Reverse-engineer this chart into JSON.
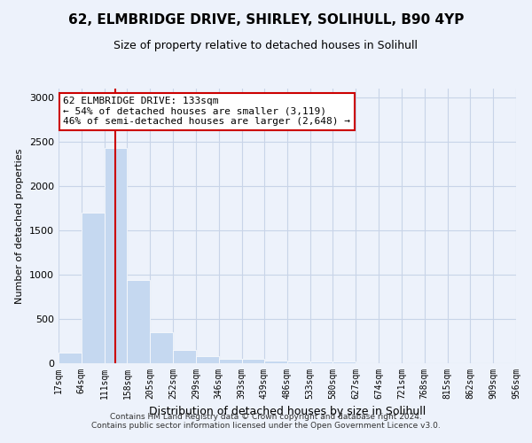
{
  "title1": "62, ELMBRIDGE DRIVE, SHIRLEY, SOLIHULL, B90 4YP",
  "title2": "Size of property relative to detached houses in Solihull",
  "xlabel": "Distribution of detached houses by size in Solihull",
  "ylabel": "Number of detached properties",
  "footer1": "Contains HM Land Registry data © Crown copyright and database right 2024.",
  "footer2": "Contains public sector information licensed under the Open Government Licence v3.0.",
  "annotation_line1": "62 ELMBRIDGE DRIVE: 133sqm",
  "annotation_line2": "← 54% of detached houses are smaller (3,119)",
  "annotation_line3": "46% of semi-detached houses are larger (2,648) →",
  "bar_color": "#c5d8f0",
  "bar_edge_color": "#ffffff",
  "property_line_x": 133,
  "bin_edges": [
    17,
    64,
    111,
    158,
    205,
    252,
    299,
    346,
    393,
    439,
    486,
    533,
    580,
    627,
    674,
    721,
    768,
    815,
    862,
    909,
    956
  ],
  "bar_heights": [
    120,
    1700,
    2430,
    940,
    350,
    155,
    85,
    50,
    50,
    30,
    20,
    20,
    20,
    5,
    3,
    2,
    1,
    1,
    1,
    1
  ],
  "ylim": [
    0,
    3100
  ],
  "yticks": [
    0,
    500,
    1000,
    1500,
    2000,
    2500,
    3000
  ],
  "annotation_box_color": "#ffffff",
  "annotation_box_edge": "#cc0000",
  "vline_color": "#cc0000",
  "grid_color": "#c8d4e8",
  "background_color": "#edf2fb",
  "title1_fontsize": 11,
  "title2_fontsize": 9,
  "xlabel_fontsize": 9,
  "ylabel_fontsize": 8,
  "tick_fontsize": 7,
  "footer_fontsize": 6.5,
  "annotation_fontsize": 8
}
